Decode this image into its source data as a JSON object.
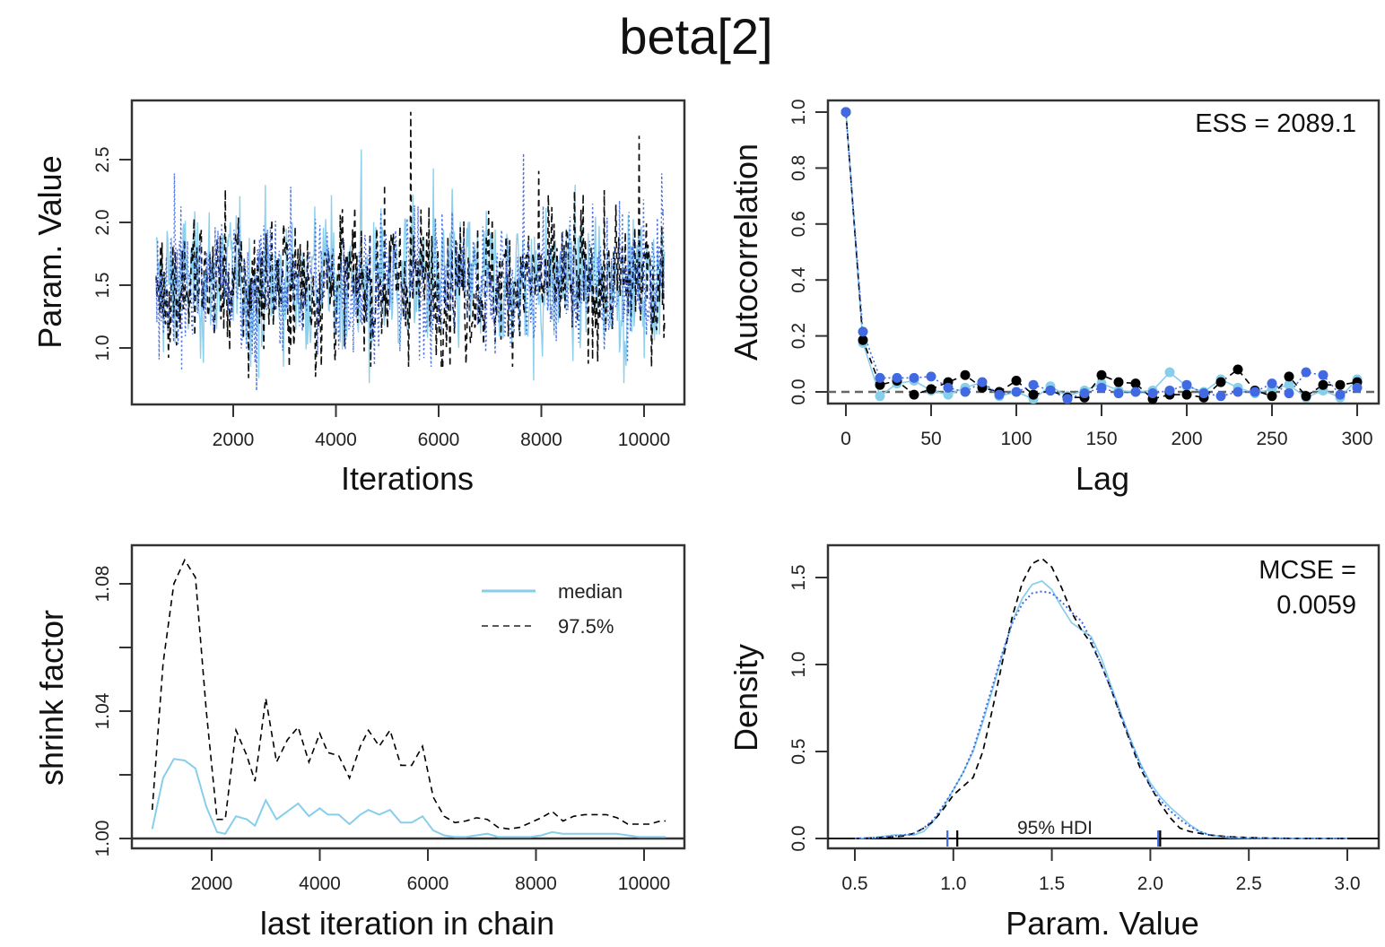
{
  "figure": {
    "title": "beta[2]",
    "colors": {
      "chain1": "#87CEEB",
      "chain2": "#000000",
      "chain3": "#4169E1",
      "axis": "#333333",
      "zero_line": "#666666"
    }
  },
  "chart_data": [
    {
      "id": "trace",
      "type": "line",
      "title": "",
      "xlabel": "Iterations",
      "ylabel": "Param. Value",
      "xlim": [
        500,
        10500
      ],
      "ylim": [
        0.6,
        2.95
      ],
      "xticks": [
        2000,
        4000,
        6000,
        8000,
        10000
      ],
      "xtick_labels": [
        "2000",
        "4000",
        "6000",
        "8000",
        "10000"
      ],
      "yticks": [
        1.0,
        1.5,
        2.0,
        2.5
      ],
      "ytick_labels": [
        "1.0",
        "1.5",
        "2.0",
        "2.5"
      ],
      "series": [
        {
          "name": "chain 1",
          "color": "#87CEEB",
          "style": "solid",
          "x_range": [
            500,
            10400
          ],
          "center": 1.52,
          "spread": 0.27,
          "extremes": [
            [
              4500,
              2.58
            ],
            [
              4650,
              0.72
            ],
            [
              5900,
              2.43
            ],
            [
              7850,
              0.74
            ],
            [
              9600,
              0.72
            ],
            [
              2500,
              0.76
            ]
          ]
        },
        {
          "name": "chain 2",
          "color": "#000000",
          "style": "dashed",
          "x_range": [
            500,
            10400
          ],
          "center": 1.52,
          "spread": 0.27,
          "extremes": [
            [
              5450,
              2.88
            ],
            [
              9900,
              2.69
            ],
            [
              2300,
              0.76
            ],
            [
              7950,
              2.41
            ],
            [
              4950,
              2.3
            ],
            [
              3600,
              0.77
            ]
          ]
        },
        {
          "name": "chain 3",
          "color": "#4169E1",
          "style": "dotted",
          "x_range": [
            500,
            10400
          ],
          "center": 1.52,
          "spread": 0.27,
          "extremes": [
            [
              2450,
              0.66
            ],
            [
              7650,
              2.55
            ],
            [
              850,
              2.39
            ],
            [
              1000,
              0.82
            ],
            [
              10350,
              2.39
            ]
          ]
        }
      ]
    },
    {
      "id": "autocorrelation",
      "type": "line",
      "xlabel": "Lag",
      "ylabel": "Autocorrelation",
      "xlim": [
        -10,
        310
      ],
      "ylim": [
        -0.03,
        1.03
      ],
      "xticks": [
        0,
        50,
        100,
        150,
        200,
        250,
        300
      ],
      "xtick_labels": [
        "0",
        "50",
        "100",
        "150",
        "200",
        "250",
        "300"
      ],
      "yticks": [
        0.0,
        0.2,
        0.4,
        0.6,
        0.8,
        1.0
      ],
      "ytick_labels": [
        "0.0",
        "0.2",
        "0.4",
        "0.6",
        "0.8",
        "1.0"
      ],
      "reference_line": 0,
      "annotation": "ESS = 2089.1",
      "lags": [
        0,
        10,
        20,
        30,
        40,
        50,
        60,
        70,
        80,
        90,
        100,
        110,
        120,
        130,
        140,
        150,
        160,
        170,
        180,
        190,
        200,
        210,
        220,
        230,
        240,
        250,
        260,
        270,
        280,
        290,
        300
      ],
      "series": [
        {
          "name": "chain 1",
          "color": "#87CEEB",
          "style": "solid",
          "values": [
            1.0,
            0.175,
            -0.015,
            0.03,
            0.04,
            0.005,
            -0.01,
            0.015,
            0.035,
            -0.015,
            0.0,
            -0.025,
            0.02,
            -0.015,
            0.005,
            0.03,
            0.005,
            0.0,
            0.005,
            0.07,
            0.02,
            0.0,
            0.045,
            0.015,
            -0.005,
            0.01,
            0.025,
            -0.02,
            0.005,
            -0.02,
            0.045
          ]
        },
        {
          "name": "chain 2",
          "color": "#000000",
          "style": "dashed",
          "values": [
            1.0,
            0.185,
            0.025,
            0.04,
            -0.01,
            0.01,
            0.035,
            0.06,
            0.015,
            0.0,
            0.04,
            -0.01,
            0.005,
            -0.02,
            -0.02,
            0.06,
            0.035,
            0.03,
            -0.025,
            -0.01,
            -0.01,
            -0.02,
            0.035,
            0.08,
            0.005,
            -0.015,
            0.055,
            -0.015,
            0.025,
            0.025,
            0.035
          ]
        },
        {
          "name": "chain 3",
          "color": "#4169E1",
          "style": "dotted",
          "values": [
            1.0,
            0.215,
            0.05,
            0.05,
            0.05,
            0.055,
            0.015,
            0.0,
            0.035,
            -0.01,
            0.0,
            0.025,
            0.005,
            -0.025,
            -0.005,
            0.015,
            -0.005,
            0.0,
            -0.005,
            0.005,
            0.025,
            -0.005,
            -0.015,
            0.0,
            0.0,
            0.03,
            -0.005,
            0.07,
            0.06,
            -0.01,
            0.015
          ]
        }
      ]
    },
    {
      "id": "shrink_factor",
      "type": "line",
      "xlabel": "last iteration in chain",
      "ylabel": "shrink factor",
      "xlim": [
        200,
        10700
      ],
      "ylim": [
        0.997,
        1.092
      ],
      "xticks": [
        2000,
        4000,
        6000,
        8000,
        10000
      ],
      "xtick_labels": [
        "2000",
        "4000",
        "6000",
        "8000",
        "10000"
      ],
      "yticks": [
        1.0,
        1.02,
        1.04,
        1.06,
        1.08
      ],
      "ytick_labels": [
        "1.00",
        "",
        "1.04",
        "",
        "1.08"
      ],
      "reference_line": 1.0,
      "legend": {
        "position": "top-right",
        "entries": [
          "median",
          "97.5%"
        ]
      },
      "x": [
        900,
        1100,
        1300,
        1500,
        1700,
        1900,
        2100,
        2250,
        2450,
        2650,
        2800,
        3000,
        3200,
        3400,
        3600,
        3800,
        4000,
        4150,
        4350,
        4550,
        4750,
        4900,
        5100,
        5300,
        5500,
        5700,
        5900,
        6100,
        6300,
        6500,
        6700,
        6900,
        7100,
        7300,
        7500,
        7700,
        7900,
        8100,
        8300,
        8500,
        8700,
        8900,
        9100,
        9300,
        9500,
        9700,
        9900,
        10100,
        10300,
        10400
      ],
      "series": [
        {
          "name": "median",
          "color": "#87CEEB",
          "style": "solid",
          "values": [
            1.003,
            1.019,
            1.025,
            1.0245,
            1.022,
            1.01,
            1.002,
            1.0015,
            1.007,
            1.006,
            1.004,
            1.012,
            1.006,
            1.0085,
            1.011,
            1.007,
            1.0095,
            1.0075,
            1.0075,
            1.0045,
            1.0075,
            1.009,
            1.0075,
            1.009,
            1.005,
            1.005,
            1.007,
            1.0025,
            1.001,
            1.0005,
            1.0005,
            1.001,
            1.0015,
            1.0005,
            1.0005,
            1.0005,
            1.0005,
            1.001,
            1.002,
            1.0015,
            1.0015,
            1.0015,
            1.0015,
            1.0015,
            1.0015,
            1.001,
            1.0005,
            1.0005,
            1.0005,
            1.0005
          ]
        },
        {
          "name": "97.5%",
          "color": "#000000",
          "style": "dashed",
          "values": [
            1.009,
            1.055,
            1.08,
            1.0875,
            1.082,
            1.04,
            1.006,
            1.006,
            1.034,
            1.026,
            1.018,
            1.044,
            1.024,
            1.031,
            1.035,
            1.024,
            1.033,
            1.027,
            1.026,
            1.019,
            1.029,
            1.034,
            1.029,
            1.034,
            1.023,
            1.023,
            1.029,
            1.013,
            1.007,
            1.005,
            1.0055,
            1.0065,
            1.006,
            1.0035,
            1.003,
            1.0035,
            1.005,
            1.0065,
            1.0085,
            1.0055,
            1.007,
            1.0075,
            1.0075,
            1.0075,
            1.0065,
            1.0045,
            1.0045,
            1.0045,
            1.0055,
            1.0055
          ]
        }
      ]
    },
    {
      "id": "density",
      "type": "line",
      "xlabel": "Param. Value",
      "ylabel": "Density",
      "xlim": [
        0.35,
        3.15
      ],
      "ylim": [
        -0.06,
        1.68
      ],
      "xticks": [
        0.5,
        1.0,
        1.5,
        2.0,
        2.5,
        3.0
      ],
      "xtick_labels": [
        "0.5",
        "1.0",
        "1.5",
        "2.0",
        "2.5",
        "3.0"
      ],
      "yticks": [
        0.0,
        0.5,
        1.0,
        1.5
      ],
      "ytick_labels": [
        "0.0",
        "0.5",
        "1.0",
        "1.5"
      ],
      "reference_line": 0,
      "annotation": [
        "MCSE =",
        "0.0059"
      ],
      "hdi": {
        "label": "95% HDI",
        "lower": [
          0.97,
          1.02
        ],
        "upper": [
          2.04,
          2.05
        ]
      },
      "x": [
        0.5,
        0.6,
        0.7,
        0.75,
        0.8,
        0.85,
        0.9,
        0.95,
        1.0,
        1.05,
        1.1,
        1.15,
        1.2,
        1.25,
        1.3,
        1.35,
        1.4,
        1.45,
        1.5,
        1.55,
        1.6,
        1.65,
        1.7,
        1.75,
        1.8,
        1.85,
        1.9,
        1.95,
        2.0,
        2.05,
        2.1,
        2.15,
        2.2,
        2.25,
        2.3,
        2.4,
        2.5,
        2.6,
        2.8,
        3.0
      ],
      "series": [
        {
          "name": "chain 1",
          "color": "#87CEEB",
          "style": "solid",
          "values": [
            0.0,
            0.005,
            0.02,
            0.02,
            0.02,
            0.04,
            0.1,
            0.18,
            0.28,
            0.38,
            0.5,
            0.67,
            0.86,
            1.06,
            1.25,
            1.38,
            1.46,
            1.48,
            1.43,
            1.33,
            1.24,
            1.2,
            1.16,
            1.04,
            0.88,
            0.72,
            0.57,
            0.43,
            0.32,
            0.24,
            0.18,
            0.13,
            0.08,
            0.04,
            0.02,
            0.005,
            0.002,
            0.0,
            0.0,
            0.0
          ]
        },
        {
          "name": "chain 2",
          "color": "#000000",
          "style": "dashed",
          "values": [
            0.0,
            0.003,
            0.01,
            0.015,
            0.03,
            0.06,
            0.1,
            0.17,
            0.25,
            0.3,
            0.35,
            0.5,
            0.75,
            1.02,
            1.28,
            1.47,
            1.58,
            1.61,
            1.56,
            1.44,
            1.3,
            1.2,
            1.12,
            1.0,
            0.86,
            0.7,
            0.55,
            0.4,
            0.3,
            0.2,
            0.12,
            0.06,
            0.04,
            0.03,
            0.02,
            0.01,
            0.005,
            0.002,
            0.0,
            0.0
          ]
        },
        {
          "name": "chain 3",
          "color": "#4169E1",
          "style": "dotted",
          "values": [
            0.0,
            0.004,
            0.015,
            0.02,
            0.03,
            0.06,
            0.11,
            0.19,
            0.28,
            0.38,
            0.51,
            0.69,
            0.88,
            1.07,
            1.24,
            1.35,
            1.41,
            1.42,
            1.41,
            1.36,
            1.3,
            1.25,
            1.14,
            1.0,
            0.86,
            0.71,
            0.56,
            0.42,
            0.3,
            0.22,
            0.16,
            0.11,
            0.07,
            0.04,
            0.02,
            0.008,
            0.003,
            0.001,
            0.0,
            0.0
          ]
        }
      ]
    }
  ]
}
